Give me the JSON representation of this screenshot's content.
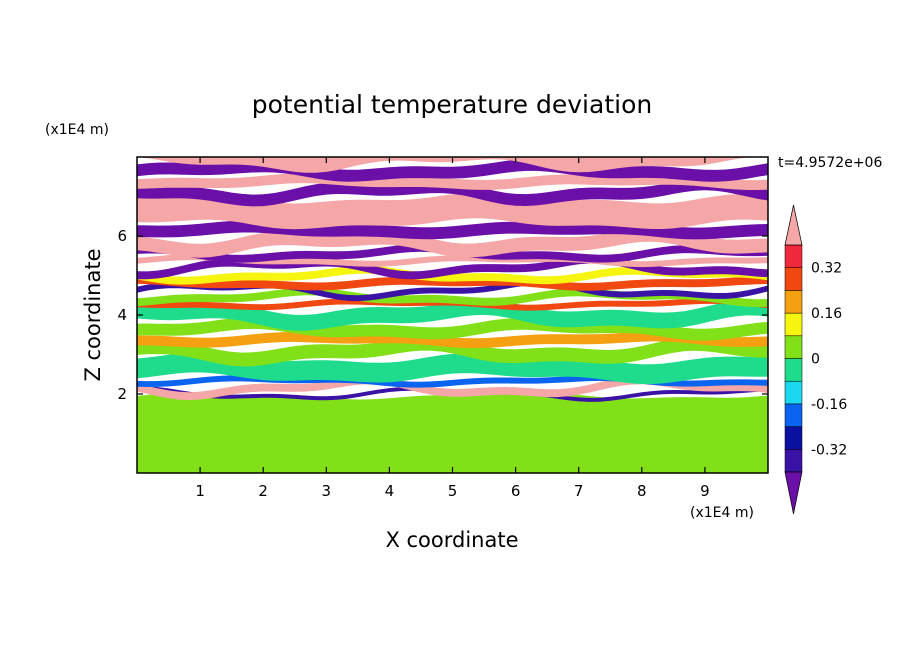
{
  "chart_data": {
    "type": "heatmap",
    "title": "potential temperature deviation",
    "xlabel": "X coordinate",
    "ylabel": "Z coordinate",
    "x_unit": "(x1E4 m)",
    "y_unit": "(x1E4 m)",
    "time_label": "t=4.9572e+06",
    "xlim": [
      0,
      10
    ],
    "ylim": [
      0,
      8
    ],
    "x_ticks": [
      1,
      2,
      3,
      4,
      5,
      6,
      7,
      8,
      9
    ],
    "x_tick_labels": [
      "1",
      "2",
      "3",
      "4",
      "5",
      "6",
      "7",
      "8",
      "9"
    ],
    "y_ticks": [
      2,
      4,
      6
    ],
    "y_tick_labels": [
      "2",
      "4",
      "6"
    ],
    "colorbar": {
      "levels": [
        -0.4,
        -0.32,
        -0.24,
        -0.16,
        -0.08,
        0,
        0.08,
        0.16,
        0.24,
        0.32,
        0.4
      ],
      "tick_values": [
        0.32,
        0.16,
        0,
        -0.16,
        -0.32
      ],
      "tick_labels": [
        "0.32",
        "0.16",
        "0",
        "-0.16",
        "-0.32"
      ],
      "colors": [
        "#6a0fa8",
        "#3a12a6",
        "#0a10a0",
        "#0a64f0",
        "#19d8f0",
        "#1edc8c",
        "#82e018",
        "#f5f510",
        "#f5a010",
        "#f04810",
        "#f0283c",
        "#f5a6a6"
      ],
      "extend": "both"
    },
    "layers": [
      {
        "y0": 0.0,
        "y1": 1.95,
        "value": 0.04
      },
      {
        "y0": 1.95,
        "y1": 2.05,
        "value": -0.36
      },
      {
        "y0": 2.05,
        "y1": 2.25,
        "value": 0.44
      },
      {
        "y0": 2.25,
        "y1": 2.4,
        "value": -0.2
      },
      {
        "y0": 2.4,
        "y1": 2.9,
        "value": -0.06
      },
      {
        "y0": 2.9,
        "y1": 3.25,
        "value": 0.02
      },
      {
        "y0": 3.25,
        "y1": 3.5,
        "value": 0.2
      },
      {
        "y0": 3.5,
        "y1": 3.8,
        "value": 0.02
      },
      {
        "y0": 3.8,
        "y1": 4.2,
        "value": -0.05
      },
      {
        "y0": 4.2,
        "y1": 4.35,
        "value": 0.28
      },
      {
        "y0": 4.35,
        "y1": 4.55,
        "value": 0.06
      },
      {
        "y0": 4.55,
        "y1": 4.7,
        "value": -0.38
      },
      {
        "y0": 4.7,
        "y1": 4.9,
        "value": 0.3
      },
      {
        "y0": 4.9,
        "y1": 5.1,
        "value": 0.12
      },
      {
        "y0": 5.1,
        "y1": 5.3,
        "value": -0.45
      },
      {
        "y0": 5.3,
        "y1": 5.45,
        "value": 0.44
      },
      {
        "y0": 5.45,
        "y1": 5.65,
        "value": -0.45
      },
      {
        "y0": 5.65,
        "y1": 6.0,
        "value": 0.44
      },
      {
        "y0": 6.0,
        "y1": 6.3,
        "value": -0.45
      },
      {
        "y0": 6.3,
        "y1": 6.95,
        "value": 0.44
      },
      {
        "y0": 6.95,
        "y1": 7.25,
        "value": -0.45
      },
      {
        "y0": 7.25,
        "y1": 7.5,
        "value": 0.44
      },
      {
        "y0": 7.5,
        "y1": 7.8,
        "value": -0.45
      },
      {
        "y0": 7.8,
        "y1": 8.0,
        "value": 0.44
      }
    ]
  }
}
